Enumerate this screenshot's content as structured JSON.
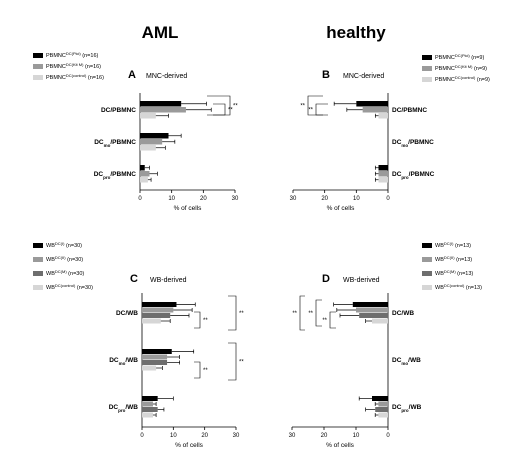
{
  "headers": {
    "left": "AML",
    "right": "healthy"
  },
  "colors": {
    "black": "#000000",
    "darkgray": "#6e6e6e",
    "gray": "#9a9a9a",
    "lightgray": "#d6d6d6"
  },
  "chart_data": [
    {
      "panel": "A",
      "title": "MNC-derived",
      "type": "bar",
      "orientation": "horizontal",
      "xlabel": "% of cells",
      "xlim": [
        0,
        30
      ],
      "xticks": [
        "0",
        "10",
        "20",
        "30"
      ],
      "categories": [
        "DC/PBMNC",
        "DCmo/PBMNC",
        "DCpro/PBMNC"
      ],
      "series": [
        {
          "name": "PBMNC^DC(Pici)",
          "n": "(n=16)",
          "color": "#000000",
          "values": [
            13,
            9,
            1.5
          ],
          "errors": [
            8,
            4,
            1.5
          ]
        },
        {
          "name": "PBMNC^DC(Kit M)",
          "n": "(n=16)",
          "color": "#9a9a9a",
          "values": [
            14.5,
            7,
            3
          ],
          "errors": [
            8,
            4,
            2.5
          ]
        },
        {
          "name": "PBMNC^DC(control)",
          "n": "(n=16)",
          "color": "#d6d6d6",
          "values": [
            5,
            5,
            2.5
          ],
          "errors": [
            4,
            3,
            1
          ]
        }
      ],
      "significance": [
        "**",
        "**"
      ]
    },
    {
      "panel": "B",
      "title": "MNC-derived",
      "type": "bar",
      "orientation": "horizontal-mirrored",
      "xlabel": "% of cells",
      "xlim": [
        0,
        30
      ],
      "xticks": [
        "30",
        "20",
        "10",
        "0"
      ],
      "categories": [
        "DC/PBMNC",
        "DCmo/PBMNC",
        "DCpro/PBMNC"
      ],
      "series": [
        {
          "name": "PBMNC^DC(Pici)",
          "n": "(n=9)",
          "color": "#000000",
          "values": [
            10,
            0,
            3
          ],
          "errors": [
            7,
            0,
            1
          ]
        },
        {
          "name": "PBMNC^DC(Kit M)",
          "n": "(n=9)",
          "color": "#9a9a9a",
          "values": [
            8,
            0,
            3
          ],
          "errors": [
            5,
            0,
            1
          ]
        },
        {
          "name": "PBMNC^DC(control)",
          "n": "(n=9)",
          "color": "#d6d6d6",
          "values": [
            3,
            0,
            3
          ],
          "errors": [
            1,
            0,
            1
          ]
        }
      ],
      "significance": [
        "**",
        "**"
      ]
    },
    {
      "panel": "C",
      "title": "WB-derived",
      "type": "bar",
      "orientation": "horizontal",
      "xlabel": "% of cells",
      "xlim": [
        0,
        30
      ],
      "xticks": [
        "0",
        "10",
        "20",
        "30"
      ],
      "categories": [
        "DC/WB",
        "DCmo/WB",
        "DCpro/WB"
      ],
      "series": [
        {
          "name": "WB^DC(I)",
          "n": "(n=30)",
          "color": "#000000",
          "values": [
            11,
            9.5,
            5
          ],
          "errors": [
            6,
            7,
            5
          ]
        },
        {
          "name": "WB^DC(II)",
          "n": "(n=30)",
          "color": "#9a9a9a",
          "values": [
            10,
            8,
            3.5
          ],
          "errors": [
            6,
            4,
            1
          ]
        },
        {
          "name": "WB^DC(M)",
          "n": "(n=30)",
          "color": "#6e6e6e",
          "values": [
            9,
            8,
            5
          ],
          "errors": [
            6,
            4,
            2
          ]
        },
        {
          "name": "WB^DC(control)",
          "n": "(n=30)",
          "color": "#d6d6d6",
          "values": [
            6,
            4.5,
            3.5
          ],
          "errors": [
            3,
            2,
            1
          ]
        }
      ],
      "significance": [
        "**",
        "**",
        "**",
        "**",
        "*",
        "**"
      ]
    },
    {
      "panel": "D",
      "title": "WB-derived",
      "type": "bar",
      "orientation": "horizontal-mirrored",
      "xlabel": "% of cells",
      "xlim": [
        0,
        30
      ],
      "xticks": [
        "30",
        "20",
        "10",
        "0"
      ],
      "categories": [
        "DC/WB",
        "DCmo/WB",
        "DCpro/WB"
      ],
      "series": [
        {
          "name": "WB^DC(I)",
          "n": "(n=13)",
          "color": "#000000",
          "values": [
            11,
            0,
            5
          ],
          "errors": [
            6,
            0,
            4
          ]
        },
        {
          "name": "WB^DC(II)",
          "n": "(n=13)",
          "color": "#9a9a9a",
          "values": [
            10,
            0,
            3
          ],
          "errors": [
            6,
            0,
            1
          ]
        },
        {
          "name": "WB^DC(M)",
          "n": "(n=13)",
          "color": "#6e6e6e",
          "values": [
            9,
            0,
            4
          ],
          "errors": [
            6,
            0,
            3
          ]
        },
        {
          "name": "WB^DC(control)",
          "n": "(n=13)",
          "color": "#d6d6d6",
          "values": [
            5,
            0,
            3
          ],
          "errors": [
            2,
            0,
            1
          ]
        }
      ],
      "significance": [
        "**",
        "**",
        "**",
        "**"
      ]
    }
  ]
}
